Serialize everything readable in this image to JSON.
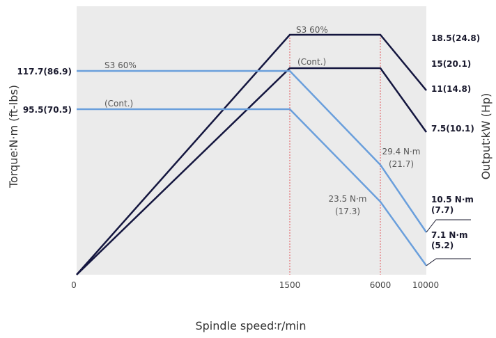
{
  "chart_data": {
    "type": "line",
    "title": "",
    "xlabel": "Spindle speed∶r/min",
    "ylabel_left": "Torque∶N·m (ft-lbs)",
    "ylabel_right": "Output∶kW (Hp)",
    "x_ticks": [
      "0",
      "1500",
      "6000",
      "10000"
    ],
    "x_positions": [
      0,
      1500,
      6000,
      10000
    ],
    "grid": false,
    "colors": {
      "output": "#14163f",
      "torque": "#6a9fdc",
      "guide": "#e0575b",
      "plot_bg": "#ebebeb"
    },
    "series": [
      {
        "kind": "output",
        "label": "S3 60%",
        "x": [
          0,
          1500,
          6000,
          10000
        ],
        "values": [
          "0",
          "18.5(24.8)",
          "18.5(24.8)",
          "11(14.8)"
        ]
      },
      {
        "kind": "output",
        "label": "(Cont.)",
        "x": [
          0,
          1500,
          6000,
          10000
        ],
        "values": [
          "0",
          "15(20.1)",
          "15(20.1)",
          "7.5(10.1)"
        ]
      },
      {
        "kind": "torque",
        "label": "S3 60%",
        "x": [
          0,
          1500,
          6000,
          10000
        ],
        "values": [
          "117.7(86.9)",
          "117.7(86.9)",
          "29.4 N·m (21.7)",
          "10.5 N·m (7.7)"
        ]
      },
      {
        "kind": "torque",
        "label": "(Cont.)",
        "x": [
          0,
          1500,
          6000,
          10000
        ],
        "values": [
          "95.5(70.5)",
          "95.5(70.5)",
          "23.5 N·m (17.3)",
          "7.1 N·m (5.2)"
        ]
      }
    ],
    "left_labels": [
      "117.7(86.9)",
      "95.5(70.5)"
    ],
    "right_labels": [
      "18.5(24.8)",
      "15(20.1)",
      "11(14.8)",
      "7.5(10.1)"
    ],
    "mid_annotations": [
      {
        "line1": "29.4 N·m",
        "line2": "(21.7)"
      },
      {
        "line1": "23.5 N·m",
        "line2": "(17.3)"
      }
    ],
    "end_annotations": [
      {
        "line1": "10.5 N·m",
        "line2": "(7.7)"
      },
      {
        "line1": "7.1 N·m",
        "line2": "(5.2)"
      }
    ]
  }
}
